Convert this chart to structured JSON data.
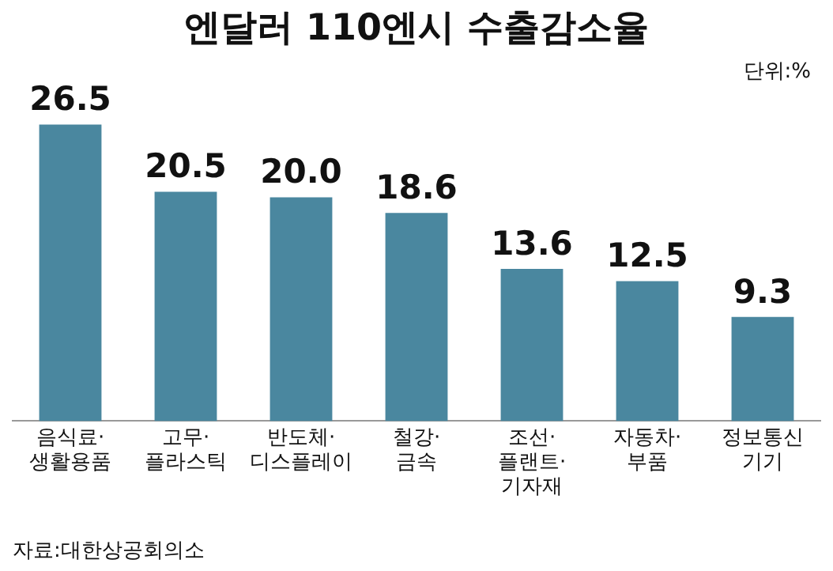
{
  "chart_data": {
    "type": "bar",
    "title": "엔달러 110엔시 수출감소율",
    "subtitle": "단위:%",
    "categories": [
      "음식료·\n생활용품",
      "고무·\n플라스틱",
      "반도체·\n디스플레이",
      "철강·\n금속",
      "조선·\n플랜트·\n기자재",
      "자동차·\n부품",
      "정보통신\n기기"
    ],
    "values": [
      26.5,
      20.5,
      20.0,
      18.6,
      13.6,
      12.5,
      9.3
    ],
    "value_labels": [
      "26.5",
      "20.5",
      "20.0",
      "18.6",
      "13.6",
      "12.5",
      "9.3"
    ],
    "color": "#4a879f",
    "annotations": [
      "자료:대한상공회의소"
    ]
  }
}
